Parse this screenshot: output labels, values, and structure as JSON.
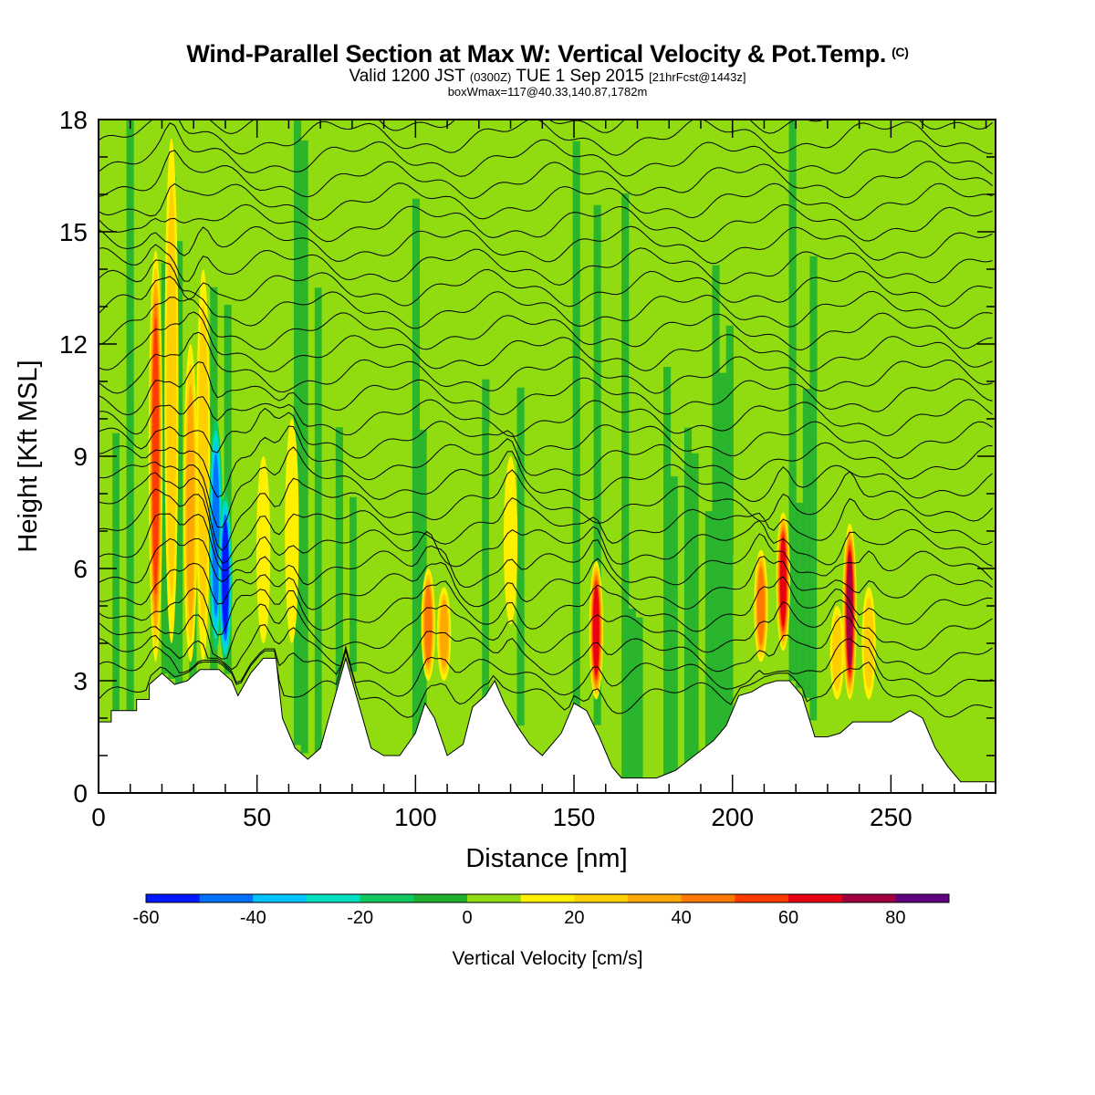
{
  "header": {
    "title": "Wind-Parallel Section at Max W: Vertical Velocity & Pot.Temp.",
    "title_mark": "(C)",
    "valid_prefix": "Valid 1200 JST",
    "valid_utc": "(0300Z)",
    "valid_date": "TUE 1 Sep 2015",
    "forecast": "[21hrFcst@1443z]",
    "box_wmax": "boxWmax=117@40.33,140.87,1782m"
  },
  "chart_data": {
    "type": "heatmap",
    "xlabel": "Distance [nm]",
    "ylabel": "Height [Kft MSL]",
    "xlim": [
      0,
      283
    ],
    "ylim": [
      0,
      18
    ],
    "x_ticks": [
      0,
      50,
      100,
      150,
      200,
      250
    ],
    "y_ticks": [
      0,
      3,
      6,
      9,
      12,
      15,
      18
    ],
    "field": "Vertical Velocity",
    "colorbar": {
      "title": "Vertical Velocity [cm/s]",
      "bins": [
        -60,
        -50,
        -40,
        -30,
        -20,
        -10,
        0,
        10,
        20,
        30,
        40,
        50,
        60,
        70,
        80,
        90
      ],
      "colors": [
        "#0018ff",
        "#0070ff",
        "#00c4ff",
        "#00e0c0",
        "#10c860",
        "#20b030",
        "#90dc10",
        "#fff000",
        "#ffd000",
        "#ffa800",
        "#ff7800",
        "#ff3c00",
        "#e80010",
        "#a00040",
        "#600080"
      ],
      "labels": [
        -60,
        -40,
        -20,
        0,
        20,
        40,
        60,
        80
      ]
    },
    "background_w": 2,
    "terrain": [
      [
        0,
        1.9
      ],
      [
        4,
        1.9
      ],
      [
        4,
        2.2
      ],
      [
        12,
        2.2
      ],
      [
        12,
        2.5
      ],
      [
        16,
        2.5
      ],
      [
        16,
        2.9
      ],
      [
        20,
        3.2
      ],
      [
        24,
        2.9
      ],
      [
        28,
        3.0
      ],
      [
        32,
        3.3
      ],
      [
        38,
        3.3
      ],
      [
        42,
        3.0
      ],
      [
        44,
        2.6
      ],
      [
        48,
        3.2
      ],
      [
        52,
        3.6
      ],
      [
        56,
        3.6
      ],
      [
        58,
        2.0
      ],
      [
        62,
        1.2
      ],
      [
        66,
        0.9
      ],
      [
        70,
        1.2
      ],
      [
        74,
        2.4
      ],
      [
        78,
        3.6
      ],
      [
        82,
        2.4
      ],
      [
        86,
        1.2
      ],
      [
        90,
        1.0
      ],
      [
        95,
        1.0
      ],
      [
        100,
        1.6
      ],
      [
        103,
        2.4
      ],
      [
        106,
        2.0
      ],
      [
        110,
        1.0
      ],
      [
        115,
        1.3
      ],
      [
        118,
        2.3
      ],
      [
        122,
        2.6
      ],
      [
        125,
        3.0
      ],
      [
        128,
        2.4
      ],
      [
        132,
        1.8
      ],
      [
        136,
        1.3
      ],
      [
        140,
        1.0
      ],
      [
        146,
        1.6
      ],
      [
        150,
        2.4
      ],
      [
        154,
        2.2
      ],
      [
        158,
        1.5
      ],
      [
        162,
        0.7
      ],
      [
        165,
        0.4
      ],
      [
        170,
        0.4
      ],
      [
        176,
        0.4
      ],
      [
        182,
        0.6
      ],
      [
        188,
        1.0
      ],
      [
        194,
        1.4
      ],
      [
        198,
        1.8
      ],
      [
        202,
        2.6
      ],
      [
        206,
        2.7
      ],
      [
        210,
        2.9
      ],
      [
        214,
        3.0
      ],
      [
        218,
        3.0
      ],
      [
        222,
        2.6
      ],
      [
        226,
        1.5
      ],
      [
        230,
        1.5
      ],
      [
        234,
        1.6
      ],
      [
        238,
        1.9
      ],
      [
        244,
        1.9
      ],
      [
        250,
        1.9
      ],
      [
        256,
        2.2
      ],
      [
        260,
        2.0
      ],
      [
        264,
        1.2
      ],
      [
        268,
        0.7
      ],
      [
        272,
        0.3
      ],
      [
        283,
        0.3
      ]
    ],
    "updrafts": [
      {
        "x": 18,
        "z_bottom": 3.5,
        "z_top": 14.5,
        "w": 55
      },
      {
        "x": 23,
        "z_bottom": 4,
        "z_top": 17.5,
        "w": 30
      },
      {
        "x": 29,
        "z_bottom": 3.5,
        "z_top": 12,
        "w": 35
      },
      {
        "x": 33,
        "z_bottom": 3.5,
        "z_top": 14,
        "w": 25
      },
      {
        "x": 37,
        "z_bottom": 3.8,
        "z_top": 10,
        "w": -50
      },
      {
        "x": 40,
        "z_bottom": 3.5,
        "z_top": 8,
        "w": -55
      },
      {
        "x": 52,
        "z_bottom": 4,
        "z_top": 9,
        "w": 20
      },
      {
        "x": 61,
        "z_bottom": 4,
        "z_top": 10,
        "w": 20
      },
      {
        "x": 104,
        "z_bottom": 3,
        "z_top": 6,
        "w": 45
      },
      {
        "x": 109,
        "z_bottom": 3,
        "z_top": 5.5,
        "w": 35
      },
      {
        "x": 130,
        "z_bottom": 4.5,
        "z_top": 9,
        "w": 20
      },
      {
        "x": 157,
        "z_bottom": 2.5,
        "z_top": 6.2,
        "w": 70
      },
      {
        "x": 209,
        "z_bottom": 3.5,
        "z_top": 6.5,
        "w": 45
      },
      {
        "x": 216,
        "z_bottom": 3.8,
        "z_top": 7.5,
        "w": 65
      },
      {
        "x": 237,
        "z_bottom": 2.5,
        "z_top": 7.2,
        "w": 80
      },
      {
        "x": 233,
        "z_bottom": 2.5,
        "z_top": 5,
        "w": 30
      },
      {
        "x": 243,
        "z_bottom": 2.5,
        "z_top": 5.5,
        "w": 25
      }
    ],
    "theta_contours_count": 28
  }
}
